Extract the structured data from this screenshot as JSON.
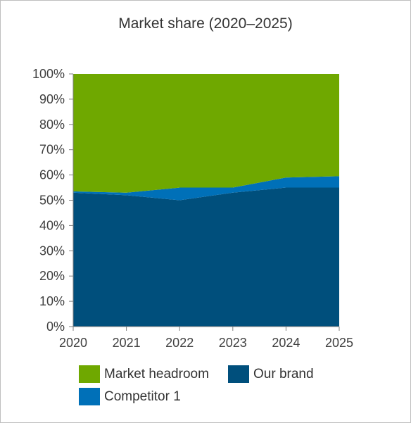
{
  "chart_data": {
    "type": "area",
    "stacked": true,
    "title": "Market share (2020–2025)",
    "xlabel": "",
    "ylabel": "",
    "x": [
      "2020",
      "2021",
      "2022",
      "2023",
      "2024",
      "2025"
    ],
    "ylim": [
      0,
      100
    ],
    "yticks": [
      "0%",
      "10%",
      "20%",
      "30%",
      "40%",
      "50%",
      "60%",
      "70%",
      "80%",
      "90%",
      "100%"
    ],
    "grid": false,
    "legend_position": "bottom",
    "series": [
      {
        "name": "Our brand",
        "color": "#004f7c",
        "values": [
          53,
          52,
          50,
          53,
          55,
          55
        ]
      },
      {
        "name": "Competitor 1",
        "color": "#0070b8",
        "values": [
          0.5,
          1,
          5,
          2,
          4,
          4.5
        ]
      },
      {
        "name": "Market headroom",
        "color": "#6fa800",
        "values": [
          46.5,
          47,
          45,
          45,
          41,
          40.5
        ]
      }
    ],
    "legend": [
      {
        "name": "Market headroom",
        "color": "#6fa800"
      },
      {
        "name": "Our brand",
        "color": "#004f7c"
      },
      {
        "name": "Competitor 1",
        "color": "#0070b8"
      }
    ]
  }
}
